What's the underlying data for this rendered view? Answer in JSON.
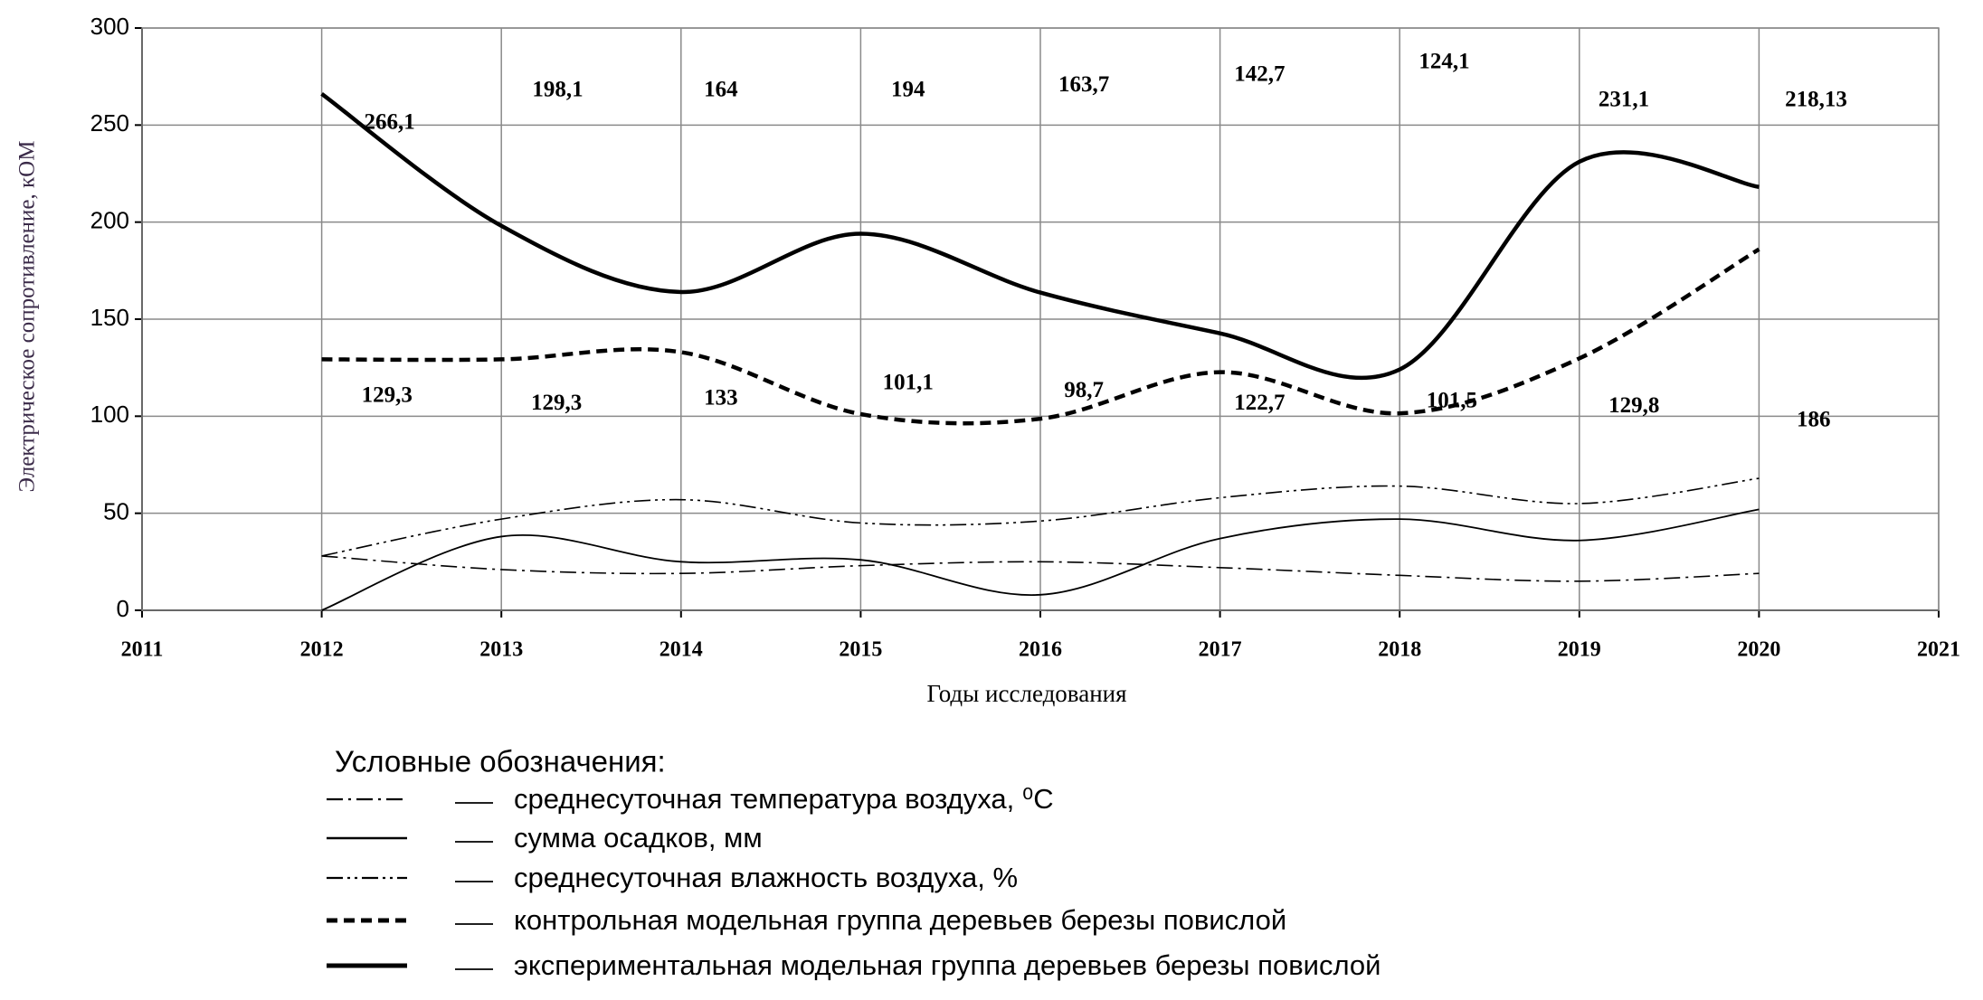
{
  "chart_data": {
    "type": "line",
    "y_label": "Электрическое сопротивление, кОМ",
    "x_label": "Годы исследования",
    "legend_title": "Условные обозначения:",
    "x": [
      2012,
      2013,
      2014,
      2015,
      2016,
      2017,
      2018,
      2019,
      2020
    ],
    "xlim": [
      2011,
      2021
    ],
    "xticks": [
      2011,
      2012,
      2013,
      2014,
      2015,
      2016,
      2017,
      2018,
      2019,
      2020,
      2021
    ],
    "ylim": [
      0,
      300
    ],
    "yticks": [
      0,
      50,
      100,
      150,
      200,
      250,
      300
    ],
    "grid": true,
    "smooth": true,
    "series": [
      {
        "name": "среднесуточная температура воздуха, ⁰С",
        "color": "#000000",
        "line_style": "dash-dot",
        "values": [
          28,
          21,
          19,
          23,
          25,
          22,
          18,
          15,
          19
        ]
      },
      {
        "name": "сумма осадков, мм",
        "color": "#000000",
        "line_style": "solid",
        "values": [
          0,
          38,
          25,
          26,
          8,
          37,
          47,
          36,
          52
        ]
      },
      {
        "name": "среднесуточная влажность воздуха, %",
        "color": "#000000",
        "line_style": "dash-dot-dot",
        "values": [
          28,
          47,
          57,
          45,
          46,
          58,
          64,
          55,
          68
        ]
      },
      {
        "name": "контрольная модельная группа деревьев березы повислой",
        "color": "#000000",
        "line_style": "dashed-bold",
        "values": [
          129.3,
          129.3,
          133,
          101.1,
          98.7,
          122.7,
          101.5,
          129.8,
          186
        ],
        "value_labels": [
          "129,3",
          "129,3",
          "133",
          "101,1",
          "98,7",
          "122,7",
          "101,5",
          "129,8",
          "186"
        ]
      },
      {
        "name": "экспериментальная модельная группа деревьев березы повислой",
        "color": "#000000",
        "line_style": "solid-bold",
        "values": [
          266.1,
          198.1,
          164,
          194,
          163.7,
          142.7,
          124.1,
          231.1,
          218.13
        ],
        "value_labels": [
          "266,1",
          "198,1",
          "164",
          "194",
          "163,7",
          "142,7",
          "124,1",
          "231,1",
          "218,13"
        ]
      }
    ]
  }
}
